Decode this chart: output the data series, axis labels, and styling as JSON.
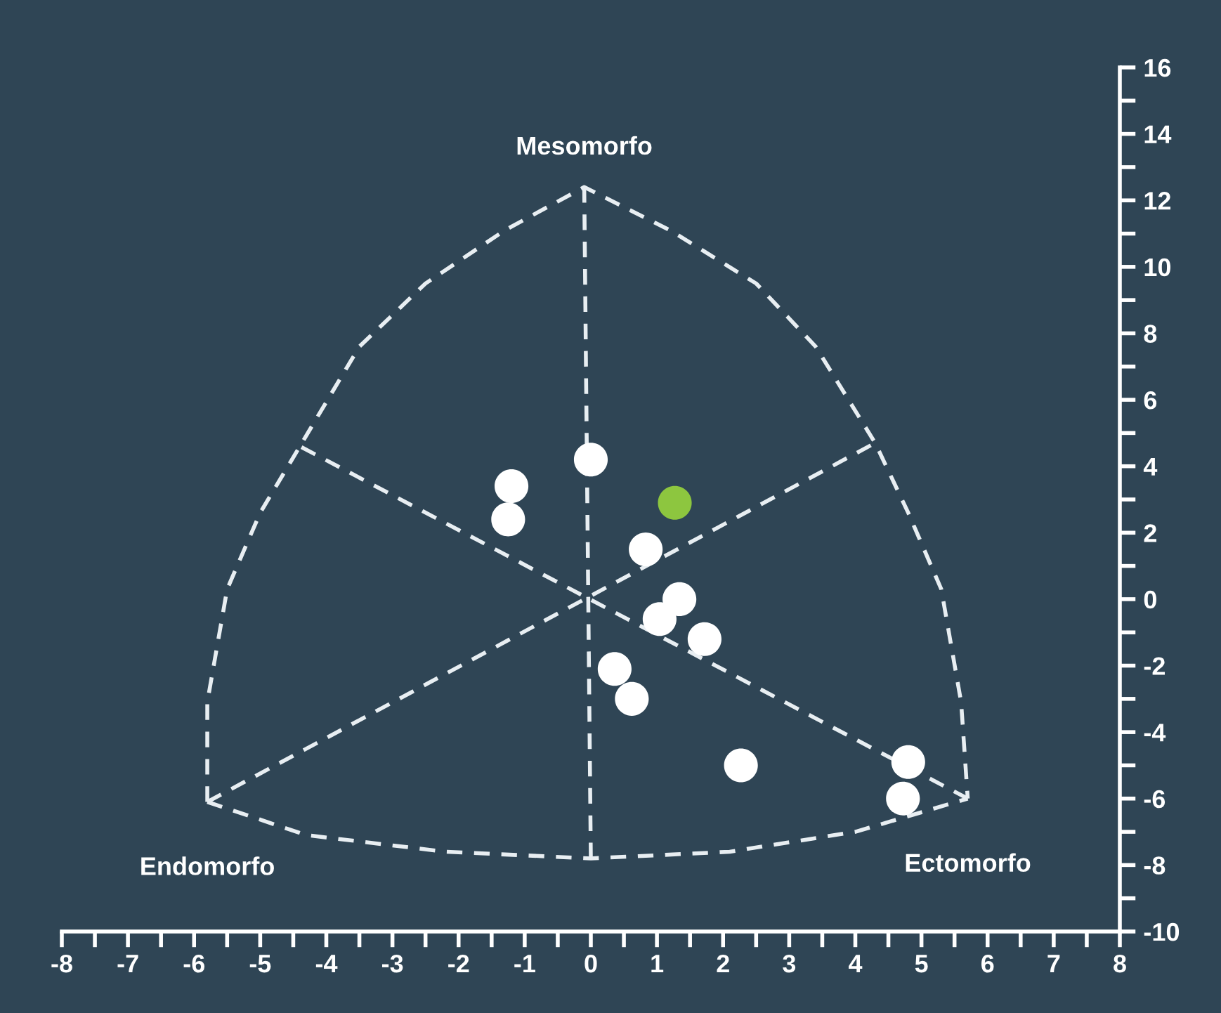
{
  "chart_data": {
    "type": "scatter",
    "xlim": [
      -8,
      8
    ],
    "ylim": [
      -10,
      16
    ],
    "xticks": [
      -8,
      -7,
      -6,
      -5,
      -4,
      -3,
      -2,
      -1,
      0,
      1,
      2,
      3,
      4,
      5,
      6,
      7,
      8
    ],
    "yticks": [
      -10,
      -8,
      -6,
      -4,
      -2,
      0,
      2,
      4,
      6,
      8,
      10,
      12,
      14,
      16
    ],
    "grid": false,
    "legend": false,
    "marker": "circle",
    "annotations": [
      {
        "text": "Mesomorfo",
        "x": -0.1,
        "y": 12.4
      },
      {
        "text": "Endomorfo",
        "x": -5.8,
        "y": -6.1
      },
      {
        "text": "Ectomorfo",
        "x": 5.7,
        "y": -6.0
      }
    ],
    "series": [
      {
        "type": "line",
        "color": "#e8eef2",
        "line_style": "dashed",
        "marker": "none",
        "x": [
          -5.8,
          -5.8,
          -5.5,
          -5.0,
          -4.4,
          -3.5,
          -2.5,
          -1.3,
          -0.1,
          1.2,
          2.5,
          3.4,
          4.3,
          4.8,
          5.3,
          5.6,
          5.7
        ],
        "values": [
          -6.1,
          -3.1,
          0.3,
          2.6,
          4.6,
          7.6,
          9.5,
          11.1,
          12.4,
          11.1,
          9.5,
          7.6,
          4.7,
          2.6,
          0.3,
          -3.1,
          -6.0
        ]
      },
      {
        "type": "line",
        "color": "#e8eef2",
        "line_style": "dashed",
        "marker": "none",
        "x": [
          -5.8,
          -4.3,
          -2.2,
          0.0,
          2.1,
          4.0,
          5.7
        ],
        "values": [
          -6.1,
          -7.1,
          -7.6,
          -7.8,
          -7.6,
          -7.0,
          -6.0
        ]
      },
      {
        "type": "line",
        "color": "#e8eef2",
        "line_style": "dashed",
        "marker": "none",
        "x": [
          -0.1,
          0.0,
          null,
          -5.8,
          4.3,
          null,
          5.7,
          -4.4
        ],
        "values": [
          12.4,
          -7.8,
          null,
          -6.1,
          4.7,
          null,
          -6.0,
          4.6
        ]
      },
      {
        "color": "#ffffff",
        "x": [
          0.0,
          -1.2,
          -1.25,
          0.83,
          1.34,
          1.04,
          1.72,
          0.36,
          0.62,
          2.27,
          4.8,
          4.72
        ],
        "values": [
          4.2,
          3.4,
          2.4,
          1.5,
          0.0,
          -0.6,
          -1.2,
          -2.1,
          -3.0,
          -5.0,
          -4.9,
          -6.0
        ]
      },
      {
        "color": "#8dc63f",
        "x": [
          1.27
        ],
        "values": [
          2.9
        ]
      }
    ]
  }
}
